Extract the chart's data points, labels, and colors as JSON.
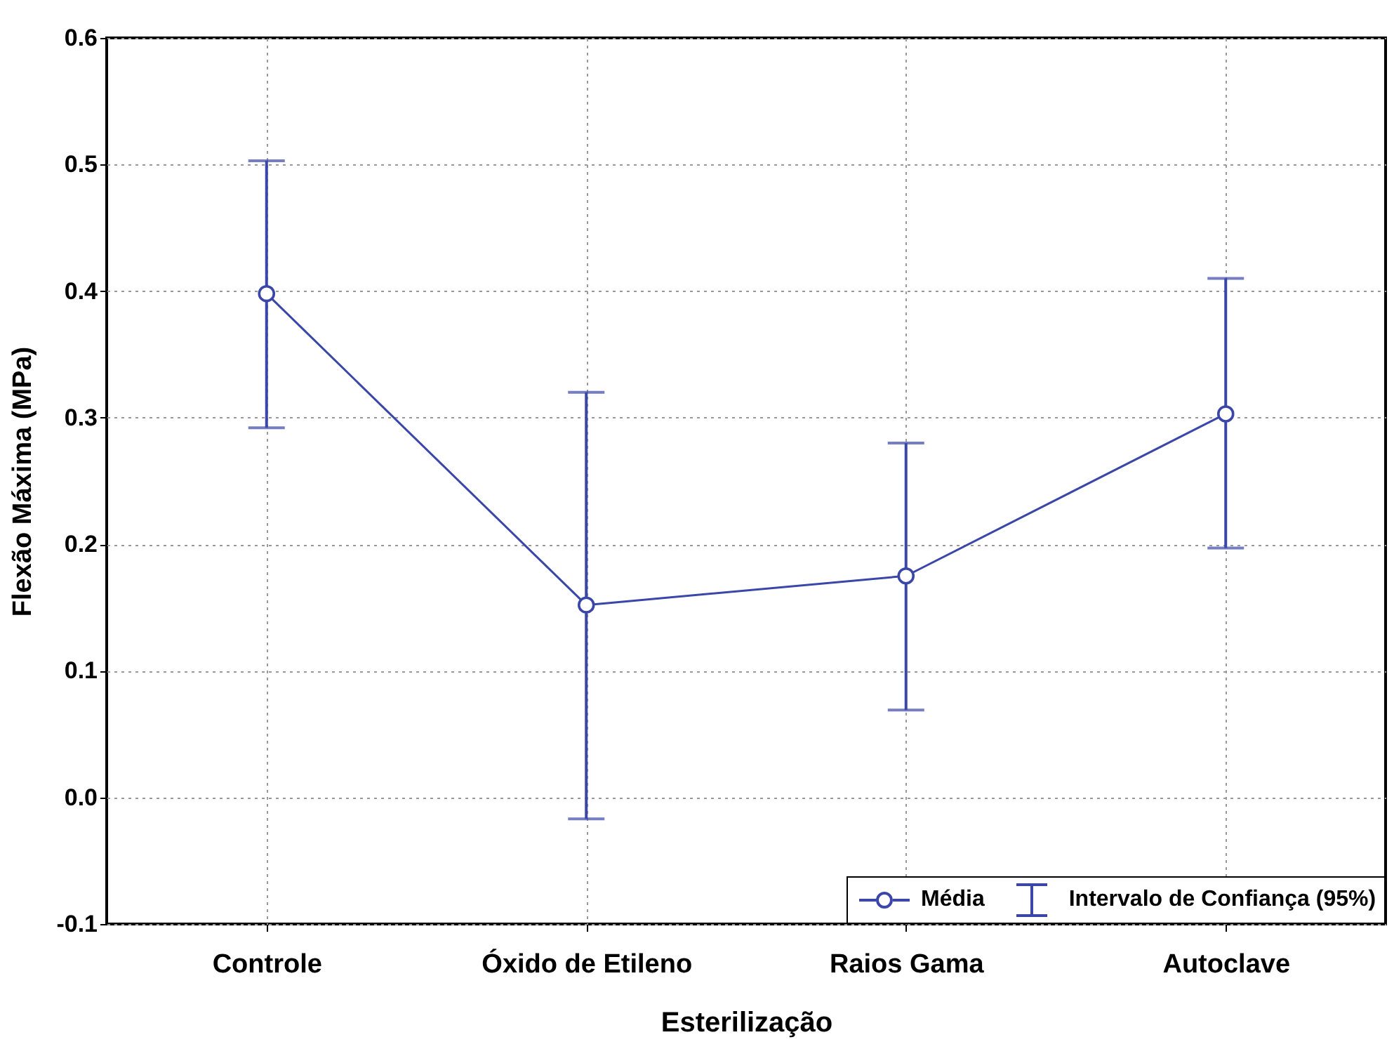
{
  "chart_data": {
    "type": "line",
    "xlabel": "Esterilização",
    "ylabel": "Flexão Máxima (MPa)",
    "categories": [
      "Controle",
      "Óxido de Etileno",
      "Raios Gama",
      "Autoclave"
    ],
    "series": [
      {
        "name": "Média",
        "color": "#3a47a8",
        "values": [
          0.398,
          0.152,
          0.175,
          0.303
        ],
        "errors": [
          [
            0.292,
            0.503
          ],
          [
            -0.017,
            0.32
          ],
          [
            0.069,
            0.28
          ],
          [
            0.197,
            0.41
          ]
        ]
      }
    ],
    "ylim": [
      -0.1,
      0.6
    ],
    "yticks": [
      {
        "value": -0.1,
        "label": "-0.1"
      },
      {
        "value": 0,
        "label": "0.0"
      },
      0.1,
      0.2,
      0.3,
      0.4,
      0.5,
      0.6
    ],
    "grid": true,
    "legend": "bottom right",
    "marker": "circle",
    "line_style": "solid",
    "annotations": [
      "Intervalo de Confiança (95%)"
    ]
  }
}
